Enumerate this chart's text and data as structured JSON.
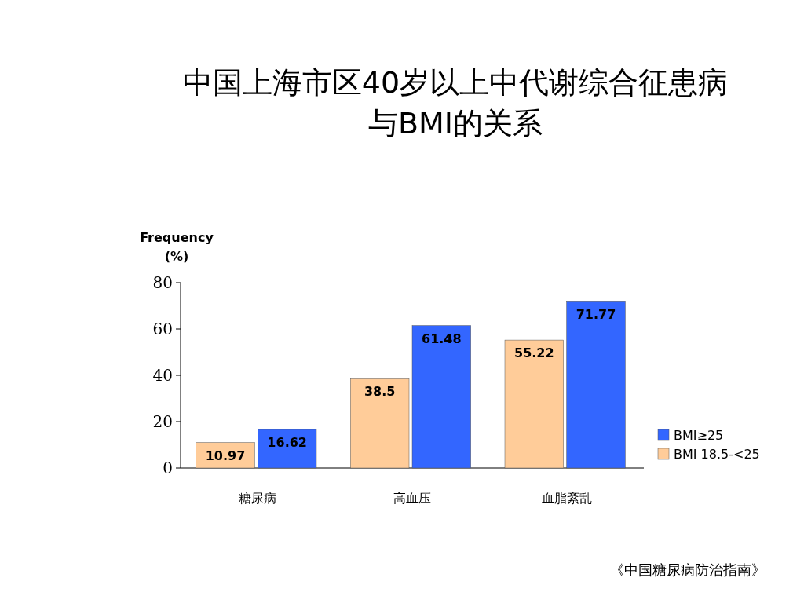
{
  "chart_data": {
    "type": "bar",
    "title": "中国上海市区40岁以上中代谢综合征患病与BMI的关系",
    "ylabel": "Frequency\n(%)",
    "categories": [
      "糖尿病",
      "高血压",
      "血脂紊乱"
    ],
    "series": [
      {
        "name": "BMI≥25",
        "color": "#3366ff",
        "values": [
          16.62,
          61.48,
          71.77
        ]
      },
      {
        "name": "BMI 18.5-<25",
        "color": "#ffcc99",
        "values": [
          10.97,
          38.5,
          55.22
        ]
      }
    ],
    "ylim": [
      0,
      80
    ],
    "yticks": [
      0,
      20,
      40,
      60,
      80
    ],
    "data_labels": true,
    "legend": "right",
    "annotations": [
      "《中国糖尿病防治指南》"
    ]
  }
}
